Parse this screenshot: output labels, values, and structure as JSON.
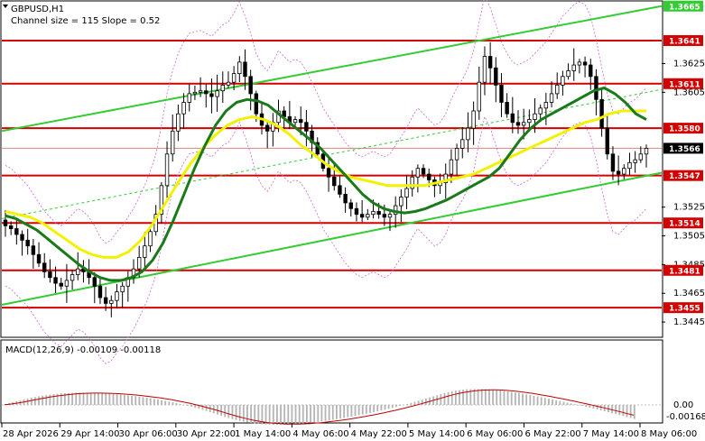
{
  "header": {
    "symbol_line": "GBPUSD,H1",
    "channel_line": "Channel size = 115 Slope = 0.52"
  },
  "macd": {
    "label": "MACD(12,26,9) -0.00109 -0.00118",
    "scale_labels": [
      "0.00",
      "-0.00168"
    ]
  },
  "colors": {
    "level_red": "#d40000",
    "ema_green": "#1a7a1a",
    "ma_yellow": "#f2f200",
    "channel_green": "#33cc33",
    "envelope_purple": "#cc66cc",
    "candle": "#000000",
    "macd_hist": "#b4b4b4",
    "macd_signal": "#c00000"
  },
  "chart_data": {
    "type": "line",
    "symbol": "GBPUSD",
    "timeframe": "H1",
    "ylim": [
      1.3435,
      1.3668
    ],
    "y_ticks": [
      "1.3625",
      "1.3605",
      "1.3525",
      "1.3505",
      "1.3485",
      "1.3465",
      "1.3445"
    ],
    "x_ticks": [
      "28 Apr 2026",
      "29 Apr 14:00",
      "30 Apr 06:00",
      "30 Apr 22:00",
      "1 May 14:00",
      "4 May 06:00",
      "4 May 22:00",
      "5 May 14:00",
      "6 May 06:00",
      "6 May 22:00",
      "7 May 14:00",
      "8 May 06:00"
    ],
    "levels": [
      {
        "label": "1.3641",
        "value": 1.3641
      },
      {
        "label": "1.3611",
        "value": 1.3611
      },
      {
        "label": "1.3580",
        "value": 1.358
      },
      {
        "label": "1.3547",
        "value": 1.3547
      },
      {
        "label": "1.3514",
        "value": 1.3514
      },
      {
        "label": "1.3481",
        "value": 1.3481
      },
      {
        "label": "1.3455",
        "value": 1.3455
      }
    ],
    "channel_top_label": "1.3665",
    "current_price": {
      "label": "1.3566",
      "value": 1.3566
    },
    "close_prices": [
      1.3512,
      1.351,
      1.3506,
      1.3502,
      1.3498,
      1.3492,
      1.3486,
      1.348,
      1.3476,
      1.3472,
      1.347,
      1.3474,
      1.3478,
      1.3482,
      1.348,
      1.3476,
      1.347,
      1.3462,
      1.3458,
      1.346,
      1.3466,
      1.347,
      1.3476,
      1.3482,
      1.349,
      1.3498,
      1.3508,
      1.352,
      1.354,
      1.3562,
      1.3578,
      1.359,
      1.3598,
      1.3604,
      1.3605,
      1.3606,
      1.3604,
      1.3602,
      1.3606,
      1.361,
      1.3612,
      1.3618,
      1.3626,
      1.3616,
      1.3604,
      1.359,
      1.3582,
      1.3578,
      1.3584,
      1.3592,
      1.3588,
      1.3584,
      1.3586,
      1.3584,
      1.3578,
      1.357,
      1.3562,
      1.3552,
      1.3546,
      1.354,
      1.3534,
      1.3528,
      1.3524,
      1.352,
      1.3518,
      1.352,
      1.3522,
      1.352,
      1.3518,
      1.352,
      1.3526,
      1.3532,
      1.3538,
      1.3546,
      1.3552,
      1.3548,
      1.3544,
      1.354,
      1.3542,
      1.3548,
      1.3558,
      1.3566,
      1.3572,
      1.358,
      1.3592,
      1.3612,
      1.363,
      1.3622,
      1.361,
      1.3598,
      1.359,
      1.3584,
      1.3582,
      1.3584,
      1.3586,
      1.359,
      1.3594,
      1.3598,
      1.3604,
      1.361,
      1.3616,
      1.362,
      1.3624,
      1.3626,
      1.3624,
      1.3616,
      1.36,
      1.358,
      1.3562,
      1.355,
      1.3548,
      1.3552,
      1.3556,
      1.3558,
      1.3562,
      1.3566
    ],
    "ema_fast": [
      1.3519,
      1.3517,
      1.3513,
      1.3509,
      1.3503,
      1.3497,
      1.3491,
      1.3485,
      1.348,
      1.3476,
      1.3474,
      1.3474,
      1.3476,
      1.348,
      1.3488,
      1.35,
      1.3516,
      1.3534,
      1.3552,
      1.3568,
      1.3582,
      1.3592,
      1.3598,
      1.36,
      1.3599,
      1.3596,
      1.359,
      1.3584,
      1.3578,
      1.3572,
      1.3566,
      1.3558,
      1.355,
      1.3542,
      1.3534,
      1.3528,
      1.3524,
      1.3522,
      1.3521,
      1.3522,
      1.3524,
      1.3527,
      1.353,
      1.3534,
      1.3538,
      1.3542,
      1.3546,
      1.3552,
      1.3562,
      1.3572,
      1.358,
      1.3586,
      1.359,
      1.3594,
      1.3598,
      1.3602,
      1.3606,
      1.3608,
      1.3604,
      1.3598,
      1.359,
      1.3586
    ],
    "ma_slow": [
      1.3522,
      1.352,
      1.3518,
      1.3514,
      1.3508,
      1.3502,
      1.3496,
      1.3492,
      1.349,
      1.349,
      1.3494,
      1.3502,
      1.3514,
      1.3528,
      1.3542,
      1.3555,
      1.3566,
      1.3575,
      1.3582,
      1.3586,
      1.3588,
      1.3586,
      1.3582,
      1.3576,
      1.3568,
      1.3562,
      1.3555,
      1.355,
      1.3546,
      1.3544,
      1.3542,
      1.354,
      1.354,
      1.354,
      1.354,
      1.3542,
      1.3544,
      1.3546,
      1.3548,
      1.3552,
      1.3556,
      1.356,
      1.3564,
      1.3568,
      1.3572,
      1.3576,
      1.358,
      1.3584,
      1.3586,
      1.359,
      1.3592,
      1.3592,
      1.3592
    ]
  }
}
